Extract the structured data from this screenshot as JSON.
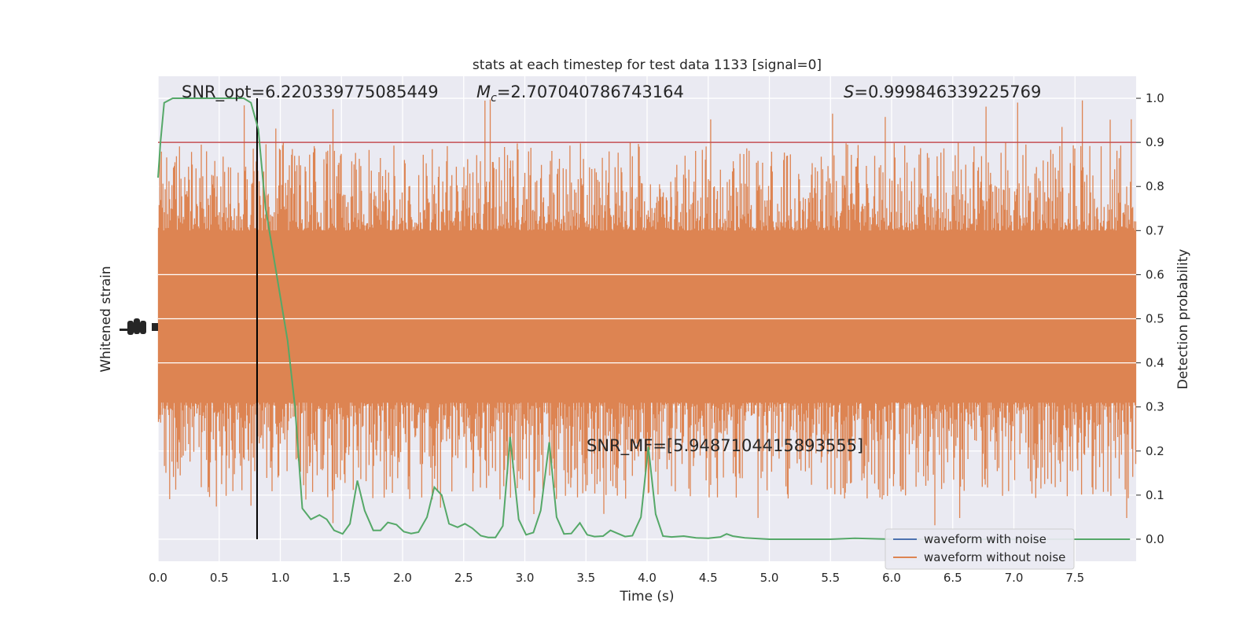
{
  "chart_data": {
    "type": "line",
    "title": "stats at each timestep for test data 1133 [signal=0]",
    "xlabel": "Time (s)",
    "ylabel_left": "Whitened strain",
    "ylabel_right": "Detection probability",
    "xlim": [
      0,
      8
    ],
    "ylim_right": [
      -0.05,
      1.05
    ],
    "x_ticks": [
      "0.0",
      "0.5",
      "1.0",
      "1.5",
      "2.0",
      "2.5",
      "3.0",
      "3.5",
      "4.0",
      "4.5",
      "5.0",
      "5.5",
      "6.0",
      "6.5",
      "7.0",
      "7.5"
    ],
    "y_ticks_right": [
      "0.0",
      "0.1",
      "0.2",
      "0.3",
      "0.4",
      "0.5",
      "0.6",
      "0.7",
      "0.8",
      "0.9",
      "1.0"
    ],
    "grid": true,
    "threshold": {
      "value": 0.9,
      "color": "#c44e52"
    },
    "marker_time": 0.81,
    "annotations": {
      "snr_opt": "SNR_opt=6.220339775085449",
      "mc_symbol": "M",
      "mc_sub": "c",
      "mc_value": "=2.707040786743164",
      "s_symbol": "S",
      "s_value": "=0.999846339225769",
      "snr_mf": "SNR_MF=[5.9487104415893555]"
    },
    "legend": {
      "placement": "lower-right",
      "entries": [
        {
          "label": "waveform with noise",
          "color": "#4c72b0"
        },
        {
          "label": "waveform without noise",
          "color": "#dd8452"
        }
      ]
    },
    "noise_band": {
      "color": "#dd8452",
      "core_low": 0.31,
      "core_high": 0.7
    },
    "probability": {
      "color": "#55a868",
      "x": [
        0.0,
        0.02,
        0.05,
        0.12,
        0.2,
        0.3,
        0.4,
        0.5,
        0.6,
        0.7,
        0.76,
        0.82,
        0.88,
        0.94,
        1.0,
        1.06,
        1.12,
        1.18,
        1.25,
        1.32,
        1.38,
        1.44,
        1.51,
        1.57,
        1.63,
        1.69,
        1.76,
        1.82,
        1.88,
        1.95,
        2.01,
        2.07,
        2.13,
        2.2,
        2.26,
        2.32,
        2.38,
        2.45,
        2.51,
        2.57,
        2.64,
        2.7,
        2.76,
        2.82,
        2.88,
        2.95,
        3.01,
        3.07,
        3.13,
        3.2,
        3.26,
        3.32,
        3.38,
        3.45,
        3.51,
        3.57,
        3.64,
        3.7,
        3.76,
        3.82,
        3.88,
        3.95,
        4.01,
        4.07,
        4.13,
        4.2,
        4.3,
        4.4,
        4.5,
        4.6,
        4.65,
        4.7,
        4.8,
        5.0,
        5.5,
        5.7,
        6.0,
        6.5,
        7.0,
        7.5,
        7.95
      ],
      "y": [
        0.82,
        0.9,
        0.99,
        1.0,
        1.0,
        1.0,
        1.0,
        1.0,
        1.0,
        1.0,
        0.99,
        0.93,
        0.75,
        0.65,
        0.55,
        0.45,
        0.3,
        0.07,
        0.045,
        0.055,
        0.045,
        0.02,
        0.012,
        0.035,
        0.133,
        0.065,
        0.02,
        0.02,
        0.038,
        0.033,
        0.017,
        0.013,
        0.016,
        0.05,
        0.118,
        0.1,
        0.035,
        0.027,
        0.035,
        0.025,
        0.008,
        0.004,
        0.004,
        0.03,
        0.232,
        0.045,
        0.01,
        0.015,
        0.065,
        0.22,
        0.05,
        0.012,
        0.013,
        0.037,
        0.01,
        0.006,
        0.007,
        0.02,
        0.013,
        0.006,
        0.008,
        0.05,
        0.21,
        0.057,
        0.007,
        0.005,
        0.007,
        0.003,
        0.002,
        0.005,
        0.012,
        0.007,
        0.003,
        0.0,
        0.0,
        0.002,
        0.0,
        0.0,
        0.0,
        0.0,
        0.0
      ]
    }
  }
}
